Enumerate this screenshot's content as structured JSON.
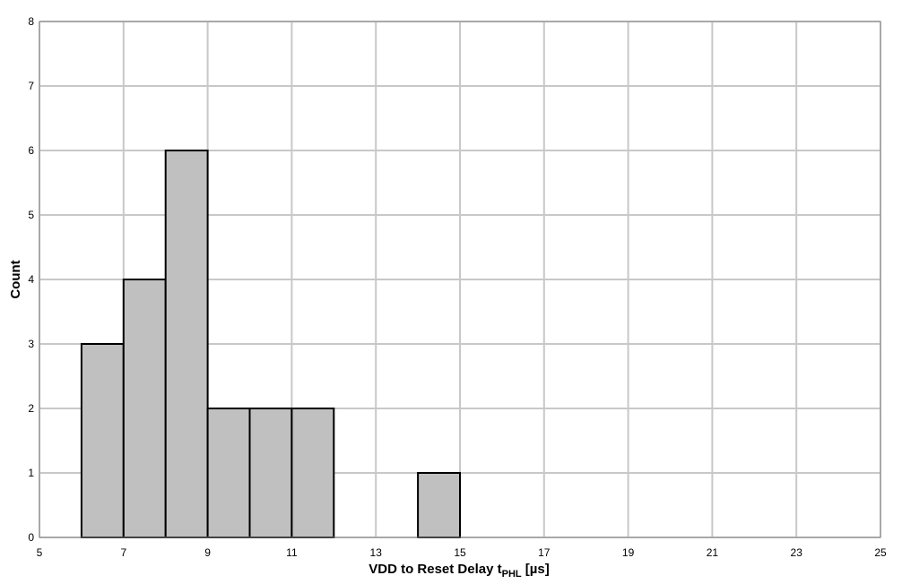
{
  "chart_data": {
    "type": "histogram",
    "xlabel": {
      "text": "VDD to Reset Delay t",
      "subscript": "PHL",
      "unit": " [µs]"
    },
    "ylabel": "Count",
    "bins": [
      6,
      7,
      8,
      9,
      10,
      11,
      12,
      13,
      14,
      15
    ],
    "counts": [
      3,
      4,
      6,
      2,
      2,
      2,
      0,
      0,
      1
    ],
    "color": "#c0c0c0",
    "xlim": [
      5,
      25
    ],
    "xticks": [
      5,
      7,
      9,
      11,
      13,
      15,
      17,
      19,
      21,
      23,
      25
    ],
    "ylim": [
      0,
      8
    ],
    "yticks": [
      0,
      1,
      2,
      3,
      4,
      5,
      6,
      7,
      8
    ],
    "grid": true
  }
}
